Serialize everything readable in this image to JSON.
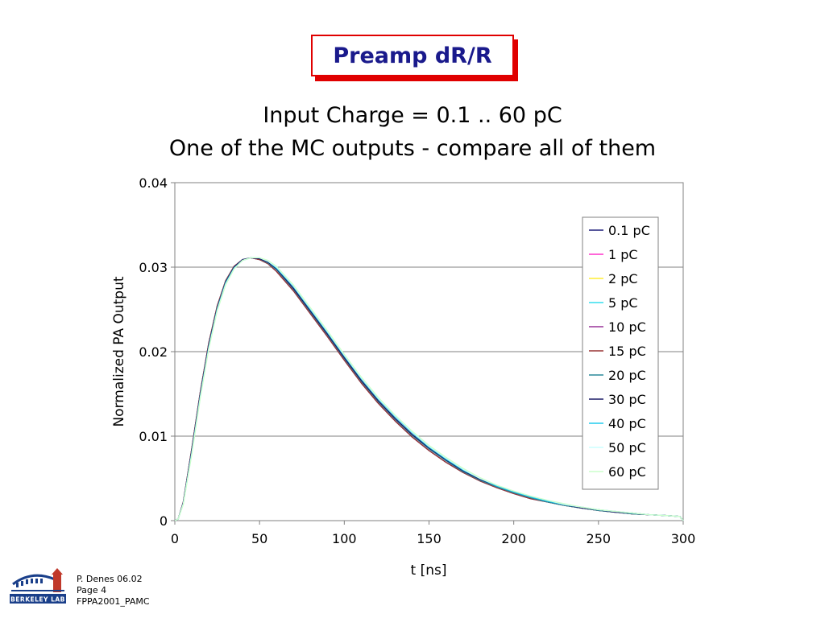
{
  "slide": {
    "title": "Preamp dR/R",
    "footer": {
      "author": "P. Denes 06.02",
      "page": "Page 4",
      "doc": "FPPA2001_PAMC",
      "logo_text": "BERKELEY LAB"
    }
  },
  "chart_data": {
    "type": "line",
    "title": "Input Charge = 0.1 .. 60 pC",
    "subtitle": "One of the MC outputs - compare all of them",
    "xlabel": "t [ns]",
    "ylabel": "Normalized PA Output",
    "xlim": [
      0,
      300
    ],
    "ylim": [
      0,
      0.04
    ],
    "xticks": [
      0,
      50,
      100,
      150,
      200,
      250,
      300
    ],
    "xtick_labels": [
      "0",
      "50",
      "100",
      "150",
      "200",
      "250",
      "300"
    ],
    "yticks": [
      0,
      0.01,
      0.02,
      0.03,
      0.04
    ],
    "ytick_labels": [
      "0",
      "0.01",
      "0.02",
      "0.03",
      "0.04"
    ],
    "grid": "horizontal",
    "legend_position": "right",
    "x": [
      0,
      2,
      5,
      10,
      15,
      20,
      25,
      30,
      35,
      40,
      45,
      50,
      55,
      60,
      70,
      80,
      90,
      100,
      110,
      120,
      130,
      140,
      150,
      160,
      170,
      180,
      190,
      200,
      210,
      220,
      230,
      240,
      250,
      260,
      270,
      280,
      290,
      298,
      300
    ],
    "series": [
      {
        "name": "0.1 pC",
        "color": "#1f1f7a",
        "values": [
          0,
          0.0002,
          0.0022,
          0.0085,
          0.0152,
          0.021,
          0.0254,
          0.0284,
          0.0301,
          0.0309,
          0.0311,
          0.0309,
          0.0304,
          0.0295,
          0.0272,
          0.0245,
          0.0218,
          0.019,
          0.0163,
          0.0139,
          0.0118,
          0.0099,
          0.0083,
          0.0069,
          0.0057,
          0.0047,
          0.0039,
          0.0032,
          0.0026,
          0.0022,
          0.0018,
          0.0015,
          0.0012,
          0.001,
          0.0008,
          0.0007,
          0.0006,
          0.0005,
          0
        ]
      },
      {
        "name": "1 pC",
        "color": "#ff33cc",
        "values": [
          0,
          0.0002,
          0.0022,
          0.0085,
          0.0152,
          0.021,
          0.0254,
          0.0284,
          0.0301,
          0.0309,
          0.0311,
          0.0309,
          0.0304,
          0.0295,
          0.0272,
          0.0245,
          0.0218,
          0.019,
          0.0163,
          0.0139,
          0.0118,
          0.0099,
          0.0083,
          0.0069,
          0.0057,
          0.0047,
          0.0039,
          0.0032,
          0.0026,
          0.0022,
          0.0018,
          0.0015,
          0.0012,
          0.001,
          0.0008,
          0.0007,
          0.0006,
          0.0005,
          0
        ]
      },
      {
        "name": "2 pC",
        "color": "#ffee33",
        "values": [
          0,
          0.0002,
          0.0022,
          0.0085,
          0.0152,
          0.021,
          0.0254,
          0.0284,
          0.0301,
          0.0309,
          0.0311,
          0.0309,
          0.0304,
          0.0295,
          0.0272,
          0.0245,
          0.0218,
          0.019,
          0.0163,
          0.0139,
          0.0118,
          0.0099,
          0.0083,
          0.0069,
          0.0057,
          0.0047,
          0.0039,
          0.0032,
          0.0026,
          0.0022,
          0.0018,
          0.0015,
          0.0012,
          0.001,
          0.0008,
          0.0007,
          0.0006,
          0.0005,
          0
        ]
      },
      {
        "name": "5 pC",
        "color": "#33ddee",
        "values": [
          0,
          0.0002,
          0.0022,
          0.0085,
          0.0152,
          0.021,
          0.0254,
          0.0284,
          0.0301,
          0.0309,
          0.0311,
          0.0309,
          0.0304,
          0.0295,
          0.0272,
          0.0245,
          0.0218,
          0.019,
          0.0163,
          0.0139,
          0.0118,
          0.0099,
          0.0083,
          0.0069,
          0.0057,
          0.0047,
          0.0039,
          0.0032,
          0.0026,
          0.0022,
          0.0018,
          0.0015,
          0.0012,
          0.001,
          0.0008,
          0.0007,
          0.0006,
          0.0005,
          0
        ]
      },
      {
        "name": "10 pC",
        "color": "#993399",
        "values": [
          0,
          0.0002,
          0.0022,
          0.0085,
          0.0152,
          0.021,
          0.0254,
          0.0284,
          0.0301,
          0.0309,
          0.0311,
          0.0309,
          0.0304,
          0.0295,
          0.0272,
          0.0245,
          0.0218,
          0.019,
          0.0163,
          0.0139,
          0.0118,
          0.0099,
          0.0083,
          0.0069,
          0.0057,
          0.0047,
          0.0039,
          0.0032,
          0.0026,
          0.0022,
          0.0018,
          0.0015,
          0.0012,
          0.001,
          0.0008,
          0.0007,
          0.0006,
          0.0005,
          0
        ]
      },
      {
        "name": "15 pC",
        "color": "#993333",
        "values": [
          0,
          0.0002,
          0.0022,
          0.0085,
          0.0152,
          0.021,
          0.0254,
          0.0284,
          0.0301,
          0.0309,
          0.0311,
          0.0309,
          0.0304,
          0.0295,
          0.0272,
          0.0245,
          0.0218,
          0.019,
          0.0163,
          0.0139,
          0.0118,
          0.0099,
          0.0083,
          0.0069,
          0.0057,
          0.0047,
          0.0039,
          0.0032,
          0.0026,
          0.0022,
          0.0018,
          0.0015,
          0.0012,
          0.001,
          0.0008,
          0.0007,
          0.0006,
          0.0005,
          0
        ]
      },
      {
        "name": "20 pC",
        "color": "#2a8a9a",
        "values": [
          0,
          0.0002,
          0.0021,
          0.0083,
          0.015,
          0.0208,
          0.0252,
          0.0283,
          0.03,
          0.0309,
          0.0311,
          0.031,
          0.0305,
          0.0297,
          0.0274,
          0.0247,
          0.022,
          0.0192,
          0.0165,
          0.0141,
          0.012,
          0.0101,
          0.0085,
          0.0071,
          0.0058,
          0.0048,
          0.004,
          0.0033,
          0.0027,
          0.0022,
          0.0018,
          0.0015,
          0.0012,
          0.001,
          0.0008,
          0.0007,
          0.0006,
          0.0005,
          0
        ]
      },
      {
        "name": "30 pC",
        "color": "#1a1a66",
        "values": [
          0,
          0.0002,
          0.0021,
          0.0082,
          0.0149,
          0.0207,
          0.0251,
          0.0282,
          0.03,
          0.0309,
          0.0311,
          0.031,
          0.0306,
          0.0298,
          0.0275,
          0.0248,
          0.0221,
          0.0193,
          0.0166,
          0.0142,
          0.0121,
          0.0102,
          0.0086,
          0.0072,
          0.0059,
          0.0049,
          0.0041,
          0.0034,
          0.0028,
          0.0023,
          0.0019,
          0.0015,
          0.0013,
          0.001,
          0.0009,
          0.0007,
          0.0006,
          0.0005,
          0
        ]
      },
      {
        "name": "40 pC",
        "color": "#22ccee",
        "values": [
          0,
          0.0002,
          0.002,
          0.008,
          0.0147,
          0.0205,
          0.025,
          0.0281,
          0.0299,
          0.0308,
          0.0311,
          0.0311,
          0.0307,
          0.0299,
          0.0277,
          0.025,
          0.0223,
          0.0195,
          0.0168,
          0.0144,
          0.0123,
          0.0104,
          0.0087,
          0.0073,
          0.006,
          0.005,
          0.0041,
          0.0034,
          0.0028,
          0.0023,
          0.0019,
          0.0016,
          0.0013,
          0.0011,
          0.0009,
          0.0007,
          0.0006,
          0.0005,
          0
        ]
      },
      {
        "name": "50 pC",
        "color": "#ccffff",
        "values": [
          0,
          0.0002,
          0.002,
          0.0079,
          0.0146,
          0.0204,
          0.0249,
          0.028,
          0.0298,
          0.0308,
          0.0311,
          0.0311,
          0.0307,
          0.03,
          0.0278,
          0.0251,
          0.0224,
          0.0196,
          0.0169,
          0.0145,
          0.0124,
          0.0105,
          0.0088,
          0.0074,
          0.0061,
          0.005,
          0.0042,
          0.0035,
          0.0029,
          0.0024,
          0.0019,
          0.0016,
          0.0013,
          0.0011,
          0.0009,
          0.0007,
          0.0006,
          0.0005,
          0
        ]
      },
      {
        "name": "60 pC",
        "color": "#ccffcc",
        "values": [
          0,
          0.0002,
          0.0019,
          0.0078,
          0.0145,
          0.0203,
          0.0248,
          0.0279,
          0.0298,
          0.0308,
          0.0311,
          0.0311,
          0.0308,
          0.0301,
          0.0279,
          0.0252,
          0.0225,
          0.0197,
          0.017,
          0.0146,
          0.0125,
          0.0106,
          0.0089,
          0.0075,
          0.0062,
          0.0051,
          0.0042,
          0.0035,
          0.0029,
          0.0024,
          0.002,
          0.0016,
          0.0013,
          0.0011,
          0.0009,
          0.0007,
          0.0006,
          0.0005,
          0
        ]
      }
    ]
  }
}
